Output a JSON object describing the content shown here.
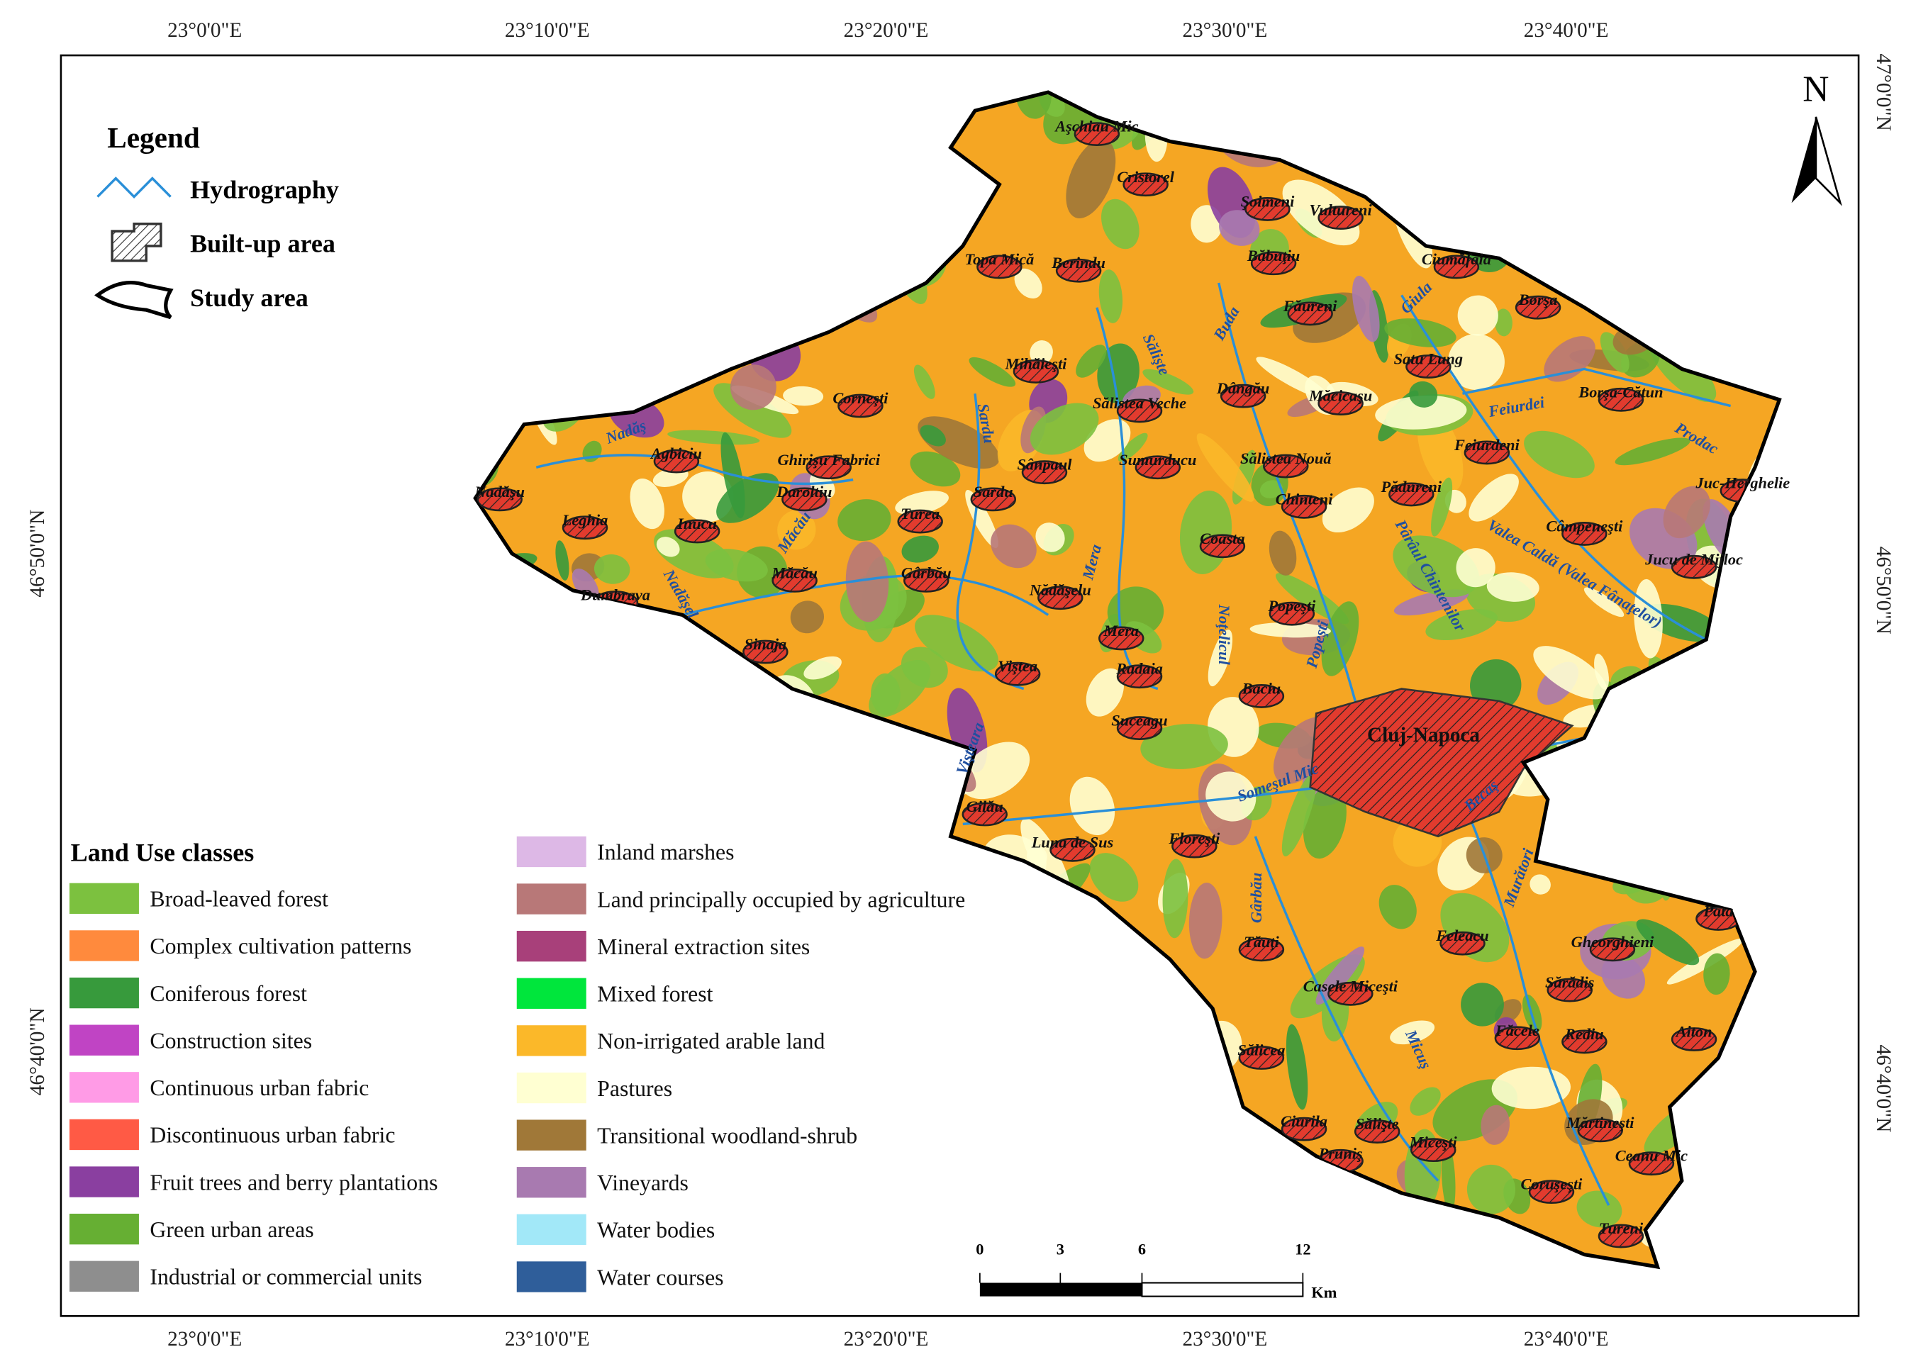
{
  "coordinates": {
    "top": [
      "23°0'0\"E",
      "23°10'0\"E",
      "23°20'0\"E",
      "23°30'0\"E",
      "23°40'0\"E"
    ],
    "bottom": [
      "23°0'0\"E",
      "23°10'0\"E",
      "23°20'0\"E",
      "23°30'0\"E",
      "23°40'0\"E"
    ],
    "left": [
      "46°50'0\"N",
      "46°40'0\"N"
    ],
    "right": [
      "47°0'0\"N",
      "46°50'0\"N",
      "46°40'0\"N"
    ]
  },
  "north": "N",
  "legend": {
    "title": "Legend",
    "items": [
      "Hydrography",
      "Built-up area",
      "Study area"
    ]
  },
  "land_use": {
    "title": "Land Use classes",
    "classes": [
      {
        "label": "Broad-leaved forest",
        "color": "#7cc13f"
      },
      {
        "label": "Complex cultivation patterns",
        "color": "#ff8a3d"
      },
      {
        "label": "Coniferous forest",
        "color": "#379a3c"
      },
      {
        "label": "Construction sites",
        "color": "#c044c4"
      },
      {
        "label": "Continuous urban fabric",
        "color": "#ff9be6"
      },
      {
        "label": "Discontinuous urban fabric",
        "color": "#ff5a45"
      },
      {
        "label": "Fruit trees and berry plantations",
        "color": "#8a3fa0"
      },
      {
        "label": "Green urban areas",
        "color": "#66af33"
      },
      {
        "label": "Industrial or commercial units",
        "color": "#8e8e8e"
      },
      {
        "label": "Inland marshes",
        "color": "#ddb8e6"
      },
      {
        "label": "Land principally occupied by agriculture",
        "color": "#b87878"
      },
      {
        "label": "Mineral extraction sites",
        "color": "#a8407a"
      },
      {
        "label": "Mixed forest",
        "color": "#00e63c"
      },
      {
        "label": "Non-irrigated arable land",
        "color": "#fbb829"
      },
      {
        "label": "Pastures",
        "color": "#ffffd2"
      },
      {
        "label": "Transitional woodland-shrub",
        "color": "#a07838"
      },
      {
        "label": "Vineyards",
        "color": "#a87ab0"
      },
      {
        "label": "Water bodies",
        "color": "#a2e8f8"
      },
      {
        "label": "Water courses",
        "color": "#2f5e9a"
      }
    ]
  },
  "places": [
    "Aşchiau Mic",
    "Cristorel",
    "Şoimeni",
    "Vultureni",
    "Topa Mică",
    "Berindu",
    "Băbuţiu",
    "Ciumăfaia",
    "Borşa",
    "Făureni",
    "Satu Lung",
    "Mihăieşti",
    "Borşa-Cătun",
    "Corneşti",
    "Sălistea Veche",
    "Dângău",
    "Măcicaşu",
    "Agbiciu",
    "Ghirişu Fabrici",
    "Sânpaul",
    "Sumurducu",
    "Sălistea Nouă",
    "Feiurdeni",
    "Nadăşu",
    "Daroltiu",
    "Sardu",
    "Chinteni",
    "Pădureni",
    "Juc-Herghelie",
    "Turea",
    "Leghia",
    "Inucu",
    "Câmpeneşti",
    "Coasta",
    "Jucu de Mijloc",
    "Măcău",
    "Gârbău",
    "Nădăşelu",
    "Dumbrava",
    "Popeşti",
    "Mera",
    "Sinaja",
    "Viştea",
    "Radaia",
    "Baciu",
    "Suceagu",
    "Cluj-Napoca",
    "Gilău",
    "Luna de Sus",
    "Floreşti",
    "Feleacu",
    "Tăuţi",
    "Gheorghieni",
    "Casele Miceşti",
    "Sălicea",
    "Sărădiş",
    "Făcele",
    "Rediu",
    "Aiton",
    "Pata",
    "Ciurila",
    "Sălişte",
    "Pruniş",
    "Miceşti",
    "Mărtineşti",
    "Ceanu Mic",
    "Coruşeşti",
    "Tureni"
  ],
  "rivers": [
    "Nadăş",
    "Sălişte",
    "Buda",
    "Sardu",
    "Mera",
    "Măcău",
    "Nadăşel",
    "Giula",
    "Feiurdei",
    "Prodac",
    "Valea Caldă (Valea Fânaţelor)",
    "Pârâul Chintenilor",
    "Popeşti",
    "Noţelicul",
    "Someşul Mic",
    "Becaş",
    "Gârbău",
    "Micuş",
    "Murători",
    "Vişteara"
  ],
  "scale": {
    "ticks": [
      "0",
      "3",
      "6",
      "12"
    ],
    "unit": "Km"
  }
}
